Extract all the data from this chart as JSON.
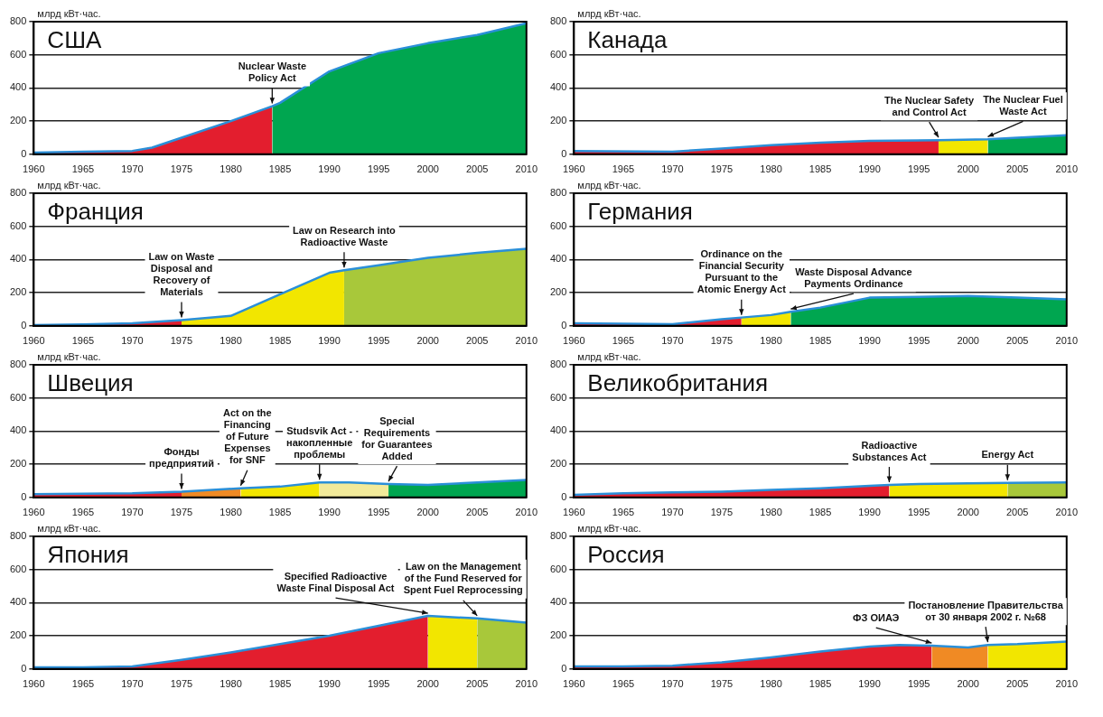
{
  "chart_data": [
    {
      "type": "area",
      "title": "США",
      "ylabel": "млрд кВт·час.",
      "xlim": [
        1960,
        2010
      ],
      "xticks": [
        1960,
        1965,
        1970,
        1975,
        1980,
        1985,
        1990,
        1995,
        2000,
        2005,
        2010
      ],
      "ylim": [
        0,
        800
      ],
      "yticks": [
        0,
        200,
        400,
        600,
        800
      ],
      "grid": "y",
      "legend": false,
      "series": [
        {
          "type": "line",
          "color": "#2a8fd8",
          "x": [
            1960,
            1965,
            1970,
            1972,
            1975,
            1980,
            1984.2,
            1985,
            1990,
            1995,
            2000,
            2005,
            2010
          ],
          "values": [
            10,
            15,
            20,
            40,
            100,
            200,
            290,
            310,
            500,
            610,
            670,
            720,
            790
          ]
        },
        {
          "color": "#e31e2e",
          "x": [
            1960,
            1965,
            1970,
            1972,
            1975,
            1980,
            1984.2
          ],
          "values": [
            10,
            15,
            20,
            40,
            100,
            200,
            290
          ]
        },
        {
          "color": "#00a650",
          "x": [
            1984.2,
            1985,
            1990,
            1995,
            2000,
            2005,
            2010
          ],
          "values": [
            290,
            310,
            500,
            610,
            670,
            720,
            790
          ]
        }
      ],
      "annotations": [
        {
          "text": "Nuclear Waste\nPolicy Act",
          "x": 1984.2,
          "y": 290
        }
      ]
    },
    {
      "type": "area",
      "title": "Канада",
      "ylabel": "млрд кВт·час.",
      "xlim": [
        1960,
        2010
      ],
      "xticks": [
        1960,
        1965,
        1970,
        1975,
        1980,
        1985,
        1990,
        1995,
        2000,
        2005,
        2010
      ],
      "ylim": [
        0,
        800
      ],
      "yticks": [
        0,
        200,
        400,
        600,
        800
      ],
      "grid": "y",
      "legend": false,
      "series": [
        {
          "type": "line",
          "color": "#2a8fd8",
          "x": [
            1960,
            1970,
            1975,
            1980,
            1985,
            1990,
            1997,
            2002,
            2005,
            2010
          ],
          "values": [
            20,
            15,
            35,
            55,
            70,
            80,
            85,
            90,
            100,
            115
          ]
        },
        {
          "color": "#e31e2e",
          "x": [
            1960,
            1970,
            1975,
            1980,
            1985,
            1990,
            1997
          ],
          "values": [
            20,
            15,
            35,
            55,
            70,
            80,
            85
          ]
        },
        {
          "color": "#f2e600",
          "x": [
            1997,
            2002
          ],
          "values": [
            85,
            90
          ]
        },
        {
          "color": "#00a650",
          "x": [
            2002,
            2005,
            2010
          ],
          "values": [
            90,
            100,
            115
          ]
        }
      ],
      "annotations": [
        {
          "text": "The Nuclear Safety\nand Control Act",
          "x": 1997,
          "y": 85
        },
        {
          "text": "The Nuclear Fuel\nWaste Act",
          "x": 2002,
          "y": 90
        }
      ]
    },
    {
      "type": "area",
      "title": "Франция",
      "ylabel": "млрд кВт·час.",
      "xlim": [
        1960,
        2010
      ],
      "xticks": [
        1960,
        1965,
        1970,
        1975,
        1980,
        1985,
        1990,
        1995,
        2000,
        2005,
        2010
      ],
      "ylim": [
        0,
        800
      ],
      "yticks": [
        0,
        200,
        400,
        600,
        800
      ],
      "grid": "y",
      "legend": false,
      "series": [
        {
          "type": "line",
          "color": "#2a8fd8",
          "x": [
            1960,
            1965,
            1970,
            1975,
            1980,
            1985,
            1990,
            1991.5,
            1995,
            2000,
            2005,
            2010
          ],
          "values": [
            5,
            8,
            15,
            35,
            60,
            190,
            320,
            335,
            365,
            410,
            440,
            465
          ]
        },
        {
          "color": "#e31e2e",
          "x": [
            1960,
            1965,
            1970,
            1975
          ],
          "values": [
            5,
            8,
            15,
            35
          ]
        },
        {
          "color": "#f2e600",
          "x": [
            1975,
            1980,
            1985,
            1990,
            1991.5
          ],
          "values": [
            35,
            60,
            190,
            320,
            335
          ]
        },
        {
          "color": "#a8c83a",
          "x": [
            1991.5,
            1995,
            2000,
            2005,
            2010
          ],
          "values": [
            335,
            365,
            410,
            440,
            465
          ]
        }
      ],
      "annotations": [
        {
          "text": "Law on Waste\nDisposal and\nRecovery of\nMaterials",
          "x": 1975,
          "y": 35
        },
        {
          "text": "Law on Research into\nRadioactive Waste",
          "x": 1991.5,
          "y": 335
        }
      ]
    },
    {
      "type": "area",
      "title": "Германия",
      "ylabel": "млрд кВт·час.",
      "xlim": [
        1960,
        2010
      ],
      "xticks": [
        1960,
        1965,
        1970,
        1975,
        1980,
        1985,
        1990,
        1995,
        2000,
        2005,
        2010
      ],
      "ylim": [
        0,
        800
      ],
      "yticks": [
        0,
        200,
        400,
        600,
        800
      ],
      "grid": "y",
      "legend": false,
      "series": [
        {
          "type": "line",
          "color": "#2a8fd8",
          "x": [
            1960,
            1970,
            1975,
            1977,
            1980,
            1982,
            1985,
            1990,
            1995,
            2000,
            2005,
            2010
          ],
          "values": [
            15,
            10,
            40,
            50,
            65,
            85,
            110,
            170,
            175,
            180,
            170,
            160
          ]
        },
        {
          "color": "#e31e2e",
          "x": [
            1960,
            1970,
            1975,
            1977
          ],
          "values": [
            15,
            10,
            40,
            50
          ]
        },
        {
          "color": "#f2e600",
          "x": [
            1977,
            1980,
            1982
          ],
          "values": [
            50,
            65,
            85
          ]
        },
        {
          "color": "#00a650",
          "x": [
            1982,
            1985,
            1990,
            1995,
            2000,
            2005,
            2010
          ],
          "values": [
            85,
            110,
            170,
            175,
            180,
            170,
            160
          ]
        }
      ],
      "annotations": [
        {
          "text": "Ordinance on the\nFinancial Security\nPursuant to the\nAtomic Energy Act",
          "x": 1977,
          "y": 50
        },
        {
          "text": "Waste Disposal Advance\nPayments Ordinance",
          "x": 1982,
          "y": 85
        }
      ]
    },
    {
      "type": "area",
      "title": "Швеция",
      "ylabel": "млрд кВт·час.",
      "xlim": [
        1960,
        2010
      ],
      "xticks": [
        1960,
        1965,
        1970,
        1975,
        1980,
        1985,
        1990,
        1995,
        2000,
        2005,
        2010
      ],
      "ylim": [
        0,
        800
      ],
      "yticks": [
        0,
        200,
        400,
        600,
        800
      ],
      "grid": "y",
      "legend": false,
      "series": [
        {
          "type": "line",
          "color": "#2a8fd8",
          "x": [
            1960,
            1970,
            1975,
            1981,
            1985,
            1989,
            1992,
            1996,
            2000,
            2005,
            2010
          ],
          "values": [
            20,
            25,
            35,
            55,
            65,
            90,
            90,
            80,
            75,
            90,
            105
          ]
        },
        {
          "color": "#e31e2e",
          "x": [
            1960,
            1970,
            1975
          ],
          "values": [
            20,
            25,
            35
          ]
        },
        {
          "color": "#f08a24",
          "x": [
            1975,
            1981
          ],
          "values": [
            35,
            55
          ]
        },
        {
          "color": "#f2e600",
          "x": [
            1981,
            1985,
            1989
          ],
          "values": [
            55,
            65,
            90
          ]
        },
        {
          "color": "#f2ea9a",
          "x": [
            1989,
            1992,
            1996
          ],
          "values": [
            90,
            90,
            80
          ]
        },
        {
          "color": "#00a650",
          "x": [
            1996,
            2000,
            2005,
            2010
          ],
          "values": [
            80,
            75,
            90,
            105
          ]
        }
      ],
      "annotations": [
        {
          "text": "Фонды\nпредприятий",
          "x": 1975,
          "y": 35
        },
        {
          "text": "Act on the\nFinancing\nof Future\nExpenses\nfor SNF",
          "x": 1981,
          "y": 55
        },
        {
          "text": "Studsvik Act -\nнакопленные\nпроблемы",
          "x": 1989,
          "y": 90
        },
        {
          "text": "Special\nRequirements\nfor Guarantees\nAdded",
          "x": 1996,
          "y": 80
        }
      ]
    },
    {
      "type": "area",
      "title": "Великобритания",
      "ylabel": "млрд кВт·час.",
      "xlim": [
        1960,
        2010
      ],
      "xticks": [
        1960,
        1965,
        1970,
        1975,
        1980,
        1985,
        1990,
        1995,
        2000,
        2005,
        2010
      ],
      "ylim": [
        0,
        800
      ],
      "yticks": [
        0,
        200,
        400,
        600,
        800
      ],
      "grid": "y",
      "legend": false,
      "series": [
        {
          "type": "line",
          "color": "#2a8fd8",
          "x": [
            1960,
            1965,
            1970,
            1975,
            1980,
            1985,
            1990,
            1992,
            1995,
            2000,
            2004,
            2010
          ],
          "values": [
            15,
            25,
            30,
            35,
            45,
            55,
            70,
            75,
            80,
            85,
            88,
            90
          ]
        },
        {
          "color": "#e31e2e",
          "x": [
            1960,
            1965,
            1970,
            1975,
            1980,
            1985,
            1990,
            1992
          ],
          "values": [
            15,
            25,
            30,
            35,
            45,
            55,
            70,
            75
          ]
        },
        {
          "color": "#f2e600",
          "x": [
            1992,
            1995,
            2000,
            2004
          ],
          "values": [
            75,
            80,
            85,
            88
          ]
        },
        {
          "color": "#a8c83a",
          "x": [
            2004,
            2010
          ],
          "values": [
            88,
            90
          ]
        }
      ],
      "annotations": [
        {
          "text": "Radioactive\nSubstances Act",
          "x": 1992,
          "y": 75
        },
        {
          "text": "Energy Act",
          "x": 2004,
          "y": 88
        }
      ]
    },
    {
      "type": "area",
      "title": "Япония",
      "ylabel": "млрд кВт·час.",
      "xlim": [
        1960,
        2010
      ],
      "xticks": [
        1960,
        1965,
        1970,
        1975,
        1980,
        1985,
        1990,
        1995,
        2000,
        2005,
        2010
      ],
      "ylim": [
        0,
        800
      ],
      "yticks": [
        0,
        200,
        400,
        600,
        800
      ],
      "grid": "y",
      "legend": false,
      "series": [
        {
          "type": "line",
          "color": "#2a8fd8",
          "x": [
            1960,
            1965,
            1970,
            1975,
            1980,
            1985,
            1990,
            1995,
            2000,
            2005,
            2010
          ],
          "values": [
            10,
            10,
            15,
            55,
            100,
            150,
            200,
            260,
            320,
            305,
            280
          ]
        },
        {
          "color": "#e31e2e",
          "x": [
            1960,
            1965,
            1970,
            1975,
            1980,
            1985,
            1990,
            1995,
            2000
          ],
          "values": [
            10,
            10,
            15,
            55,
            100,
            150,
            200,
            260,
            320
          ]
        },
        {
          "color": "#f2e600",
          "x": [
            2000,
            2005
          ],
          "values": [
            320,
            305
          ]
        },
        {
          "color": "#a8c83a",
          "x": [
            2005,
            2010
          ],
          "values": [
            305,
            280
          ]
        }
      ],
      "annotations": [
        {
          "text": "Specified Radioactive\nWaste Final Disposal Act",
          "x": 2000,
          "y": 320
        },
        {
          "text": "Law on the Management\nof the Fund Reserved for\nSpent Fuel Reprocessing",
          "x": 2005,
          "y": 305
        }
      ]
    },
    {
      "type": "area",
      "title": "Россия",
      "ylabel": "млрд кВт·час.",
      "xlim": [
        1960,
        2010
      ],
      "xticks": [
        1960,
        1965,
        1970,
        1975,
        1980,
        1985,
        1990,
        1995,
        2000,
        2005,
        2010
      ],
      "ylim": [
        0,
        800
      ],
      "yticks": [
        0,
        200,
        400,
        600,
        800
      ],
      "grid": "y",
      "legend": false,
      "series": [
        {
          "type": "line",
          "color": "#2a8fd8",
          "x": [
            1960,
            1965,
            1970,
            1975,
            1980,
            1985,
            1990,
            1993,
            1996.3,
            2000,
            2002,
            2005,
            2010
          ],
          "values": [
            15,
            15,
            20,
            40,
            70,
            105,
            135,
            145,
            140,
            130,
            145,
            150,
            165
          ]
        },
        {
          "color": "#e31e2e",
          "x": [
            1960,
            1965,
            1970,
            1975,
            1980,
            1985,
            1990,
            1993,
            1996.3
          ],
          "values": [
            15,
            15,
            20,
            40,
            70,
            105,
            135,
            145,
            140
          ]
        },
        {
          "color": "#f08a24",
          "x": [
            1996.3,
            2000,
            2002
          ],
          "values": [
            140,
            130,
            145
          ]
        },
        {
          "color": "#f2e600",
          "x": [
            2002,
            2005,
            2010
          ],
          "values": [
            145,
            150,
            165
          ]
        }
      ],
      "annotations": [
        {
          "text": "ФЗ ОИАЭ",
          "x": 1996.3,
          "y": 140
        },
        {
          "text": "Постановление Правительства\nот 30 января 2002 г. №68",
          "x": 2002,
          "y": 145
        }
      ]
    }
  ]
}
